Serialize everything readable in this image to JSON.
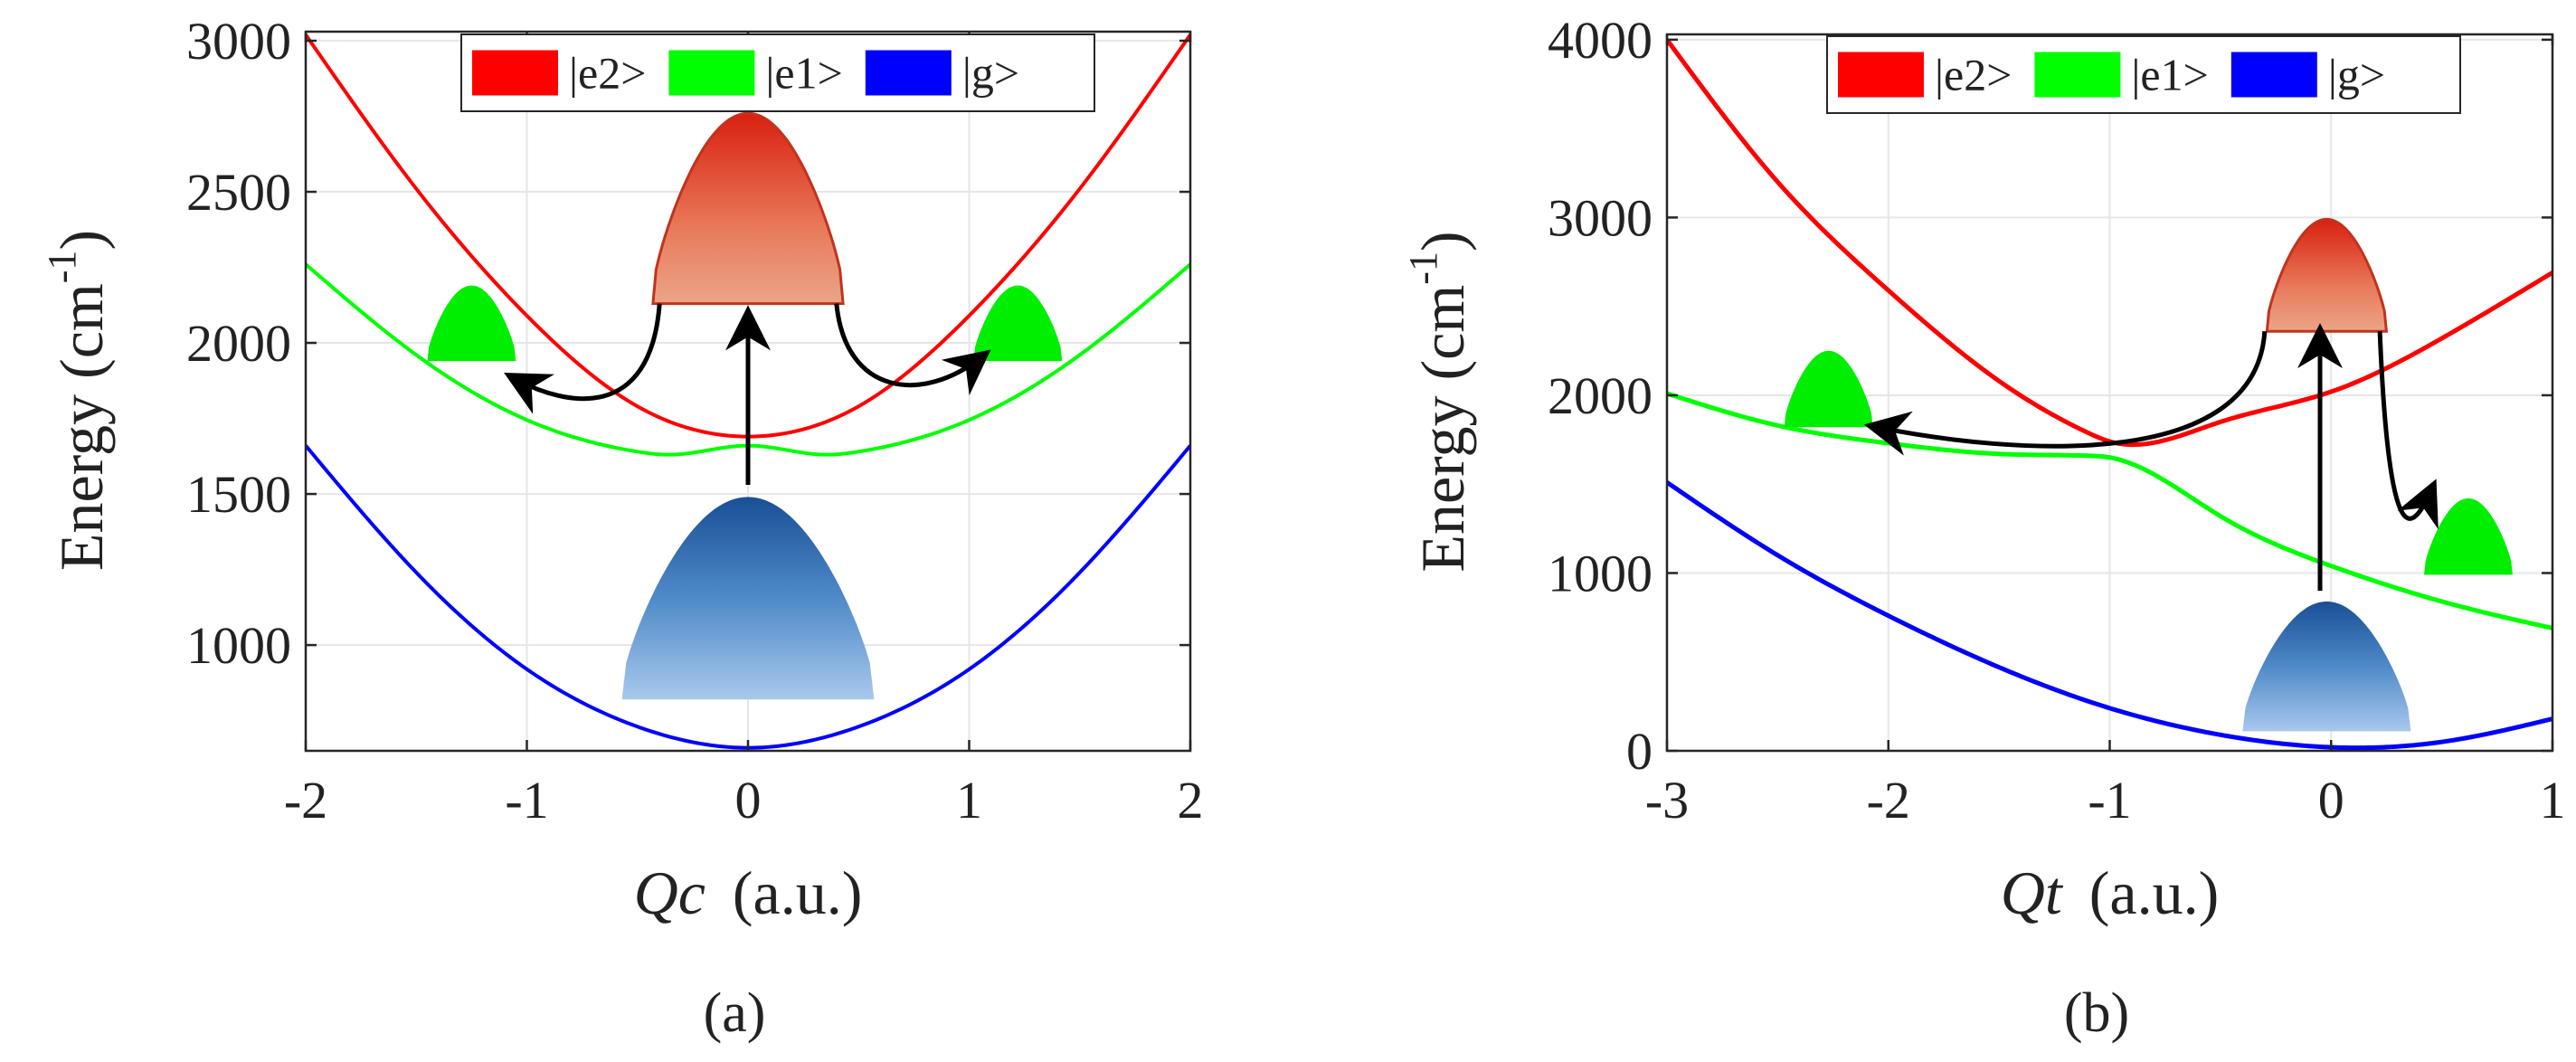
{
  "chart_data": [
    {
      "type": "line",
      "caption": "(a)",
      "xlabel_var": "Qc",
      "xlabel_unit": "(a.u.)",
      "ylabel_main": "Energy  (cm",
      "ylabel_sup": "-1",
      "ylabel_close": ")",
      "xlim": [
        -2,
        2
      ],
      "ylim": [
        650,
        3030
      ],
      "xticks": [
        -2,
        -1,
        0,
        1,
        2
      ],
      "xtick_labels": [
        "-2",
        "-1",
        "0",
        "1",
        "2"
      ],
      "yticks": [
        1000,
        1500,
        2000,
        2500,
        3000
      ],
      "ytick_labels": [
        "1000",
        "1500",
        "2000",
        "2500",
        "3000"
      ],
      "grid": true,
      "legend_position": "top-right",
      "legend": [
        {
          "label": "|e2>",
          "color": "#ff0000"
        },
        {
          "label": "|e1>",
          "color": "#00ff00"
        },
        {
          "label": "|g>",
          "color": "#0000ff"
        }
      ],
      "series": [
        {
          "name": "|e2>",
          "color": "#ff0000",
          "x": [
            -2,
            -1.5,
            -1,
            -0.5,
            0,
            0.5,
            1,
            1.5,
            2
          ],
          "values": [
            3020,
            2510,
            2090,
            1790,
            1690,
            1790,
            2090,
            2510,
            3020
          ]
        },
        {
          "name": "|e1>",
          "color": "#00ff00",
          "x": [
            -2,
            -1.5,
            -1,
            -0.5,
            -0.35,
            0,
            0.35,
            0.5,
            1,
            1.5,
            2
          ],
          "values": [
            2260,
            1960,
            1745,
            1640,
            1630,
            1660,
            1630,
            1640,
            1745,
            1960,
            2260
          ]
        },
        {
          "name": "|g>",
          "color": "#0000ff",
          "x": [
            -2,
            -1.5,
            -1,
            -0.5,
            0,
            0.5,
            1,
            1.5,
            2
          ],
          "values": [
            1660,
            1240,
            920,
            730,
            660,
            730,
            920,
            1240,
            1660
          ]
        }
      ],
      "wavepackets": [
        {
          "name": "ground-packet",
          "color": "blue",
          "x_center": 0,
          "half_width": 0.57,
          "y_base": 820,
          "y_peak": 1490
        },
        {
          "name": "excited-packet",
          "color": "red",
          "x_center": 0,
          "half_width": 0.43,
          "y_base": 2130,
          "y_peak": 2760
        },
        {
          "name": "left-packet",
          "color": "green",
          "x_center": -1.25,
          "half_width": 0.2,
          "y_base": 1940,
          "y_peak": 2190
        },
        {
          "name": "right-packet",
          "color": "green",
          "x_center": 1.22,
          "half_width": 0.2,
          "y_base": 1940,
          "y_peak": 2190
        }
      ],
      "arrows": [
        {
          "name": "excitation-arrow",
          "from": [
            0,
            1530
          ],
          "to": [
            0,
            2080
          ],
          "curve": 0
        },
        {
          "name": "left-transfer-arrow",
          "from": [
            -0.4,
            2130
          ],
          "to": [
            -1.05,
            1880
          ],
          "curve": 1
        },
        {
          "name": "right-transfer-arrow",
          "from": [
            0.4,
            2130
          ],
          "to": [
            1.05,
            1950
          ],
          "curve": -1
        }
      ]
    },
    {
      "type": "line",
      "caption": "(b)",
      "xlabel_var": "Qt",
      "xlabel_unit": "(a.u.)",
      "ylabel_main": "Energy  (cm",
      "ylabel_sup": "-1",
      "ylabel_close": ")",
      "xlim": [
        -3,
        1
      ],
      "ylim": [
        0,
        4030
      ],
      "xticks": [
        -3,
        -2,
        -1,
        0,
        1
      ],
      "xtick_labels": [
        "-3",
        "-2",
        "-1",
        "0",
        "1"
      ],
      "yticks": [
        0,
        1000,
        2000,
        3000,
        4000
      ],
      "ytick_labels": [
        "0",
        "1000",
        "2000",
        "3000",
        "4000"
      ],
      "grid": true,
      "legend_position": "top-right",
      "legend": [
        {
          "label": "|e2>",
          "color": "#ff0000"
        },
        {
          "label": "|e1>",
          "color": "#00ff00"
        },
        {
          "label": "|g>",
          "color": "#0000ff"
        }
      ],
      "series": [
        {
          "name": "|e2>",
          "color": "#ff0000",
          "x": [
            -3,
            -2.5,
            -2,
            -1.5,
            -1.1,
            -1,
            -0.5,
            0,
            0.5,
            1
          ],
          "values": [
            4000,
            3200,
            2590,
            2080,
            1790,
            1740,
            1850,
            2020,
            2320,
            2690
          ]
        },
        {
          "name": "|e1>",
          "color": "#00ff00",
          "x": [
            -3,
            -2.5,
            -2,
            -1.5,
            -1.1,
            -1,
            -0.5,
            0,
            0.5,
            1
          ],
          "values": [
            2010,
            1830,
            1730,
            1670,
            1660,
            1650,
            1320,
            1040,
            840,
            690
          ]
        },
        {
          "name": "|g>",
          "color": "#0000ff",
          "x": [
            -3,
            -2.5,
            -2,
            -1.5,
            -1,
            -0.5,
            0,
            0.5,
            1
          ],
          "values": [
            1510,
            1100,
            760,
            470,
            240,
            90,
            20,
            50,
            180
          ]
        }
      ],
      "wavepackets": [
        {
          "name": "ground-packet",
          "color": "blue",
          "x_center": -0.02,
          "half_width": 0.38,
          "y_base": 110,
          "y_peak": 840
        },
        {
          "name": "excited-packet",
          "color": "red",
          "x_center": -0.02,
          "half_width": 0.27,
          "y_base": 2360,
          "y_peak": 2990
        },
        {
          "name": "left-packet",
          "color": "green",
          "x_center": -2.27,
          "half_width": 0.2,
          "y_base": 1820,
          "y_peak": 2250
        },
        {
          "name": "right-packet",
          "color": "green",
          "x_center": 0.62,
          "half_width": 0.2,
          "y_base": 990,
          "y_peak": 1420
        }
      ],
      "arrows": [
        {
          "name": "excitation-arrow",
          "from": [
            -0.05,
            900
          ],
          "to": [
            -0.05,
            2330
          ],
          "curve": 0
        },
        {
          "name": "left-transfer-arrow",
          "from": [
            -0.3,
            2360
          ],
          "to": [
            -2.05,
            1820
          ],
          "curve": 1
        },
        {
          "name": "right-transfer-arrow",
          "from": [
            0.22,
            2360
          ],
          "to": [
            0.45,
            1460
          ],
          "curve": -1
        }
      ]
    }
  ]
}
